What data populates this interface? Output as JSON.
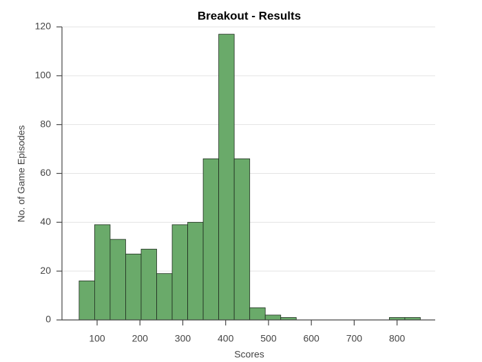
{
  "chart_data": {
    "type": "histogram",
    "title": "Breakout - Results",
    "xlabel": "Scores",
    "ylabel": "No. of Game Episodes",
    "bins": [
      58,
      94.2,
      130.4,
      166.6,
      202.8,
      239,
      275.2,
      311.4,
      347.6,
      383.8,
      420,
      456.2,
      492.4,
      528.6,
      564.8,
      601,
      637.2,
      673.4,
      709.6,
      745.8,
      782,
      818.2,
      854.4
    ],
    "counts": [
      16,
      39,
      33,
      27,
      29,
      19,
      39,
      40,
      66,
      117,
      66,
      5,
      2,
      1,
      0,
      0,
      0,
      0,
      0,
      0,
      1,
      1
    ],
    "color": "#6aaa6a",
    "xlim": [
      18,
      889
    ],
    "xticks": [
      100,
      200,
      300,
      400,
      500,
      600,
      700,
      800
    ],
    "ylim": [
      0,
      120
    ],
    "yticks": [
      0,
      20,
      40,
      60,
      80,
      100,
      120
    ],
    "grid": true
  }
}
